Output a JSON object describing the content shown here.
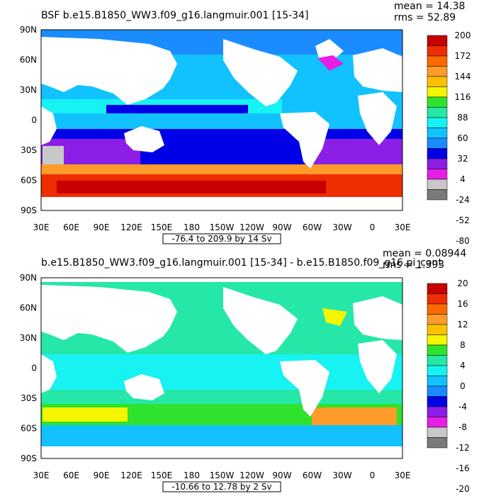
{
  "panels": [
    {
      "title": "BSF b.e15.B1850_WW3.f09_g16.langmuir.001 [15-34]",
      "stats": {
        "mean": "mean = 14.38",
        "rms": "rms = 52.89"
      },
      "range_label": "-76.4 to 209.9 by 14 Sv",
      "colorbar": {
        "labels": [
          "200",
          "172",
          "144",
          "116",
          "88",
          "60",
          "32",
          "4",
          "-24",
          "-52",
          "-80"
        ],
        "colors": [
          "#c80000",
          "#ee2d00",
          "#ff6a00",
          "#ff9b28",
          "#ffc000",
          "#f5f500",
          "#2ee22e",
          "#25e8a8",
          "#17f2f2",
          "#11c2ff",
          "#1a8cff",
          "#0000e6",
          "#8c1ee6",
          "#e61ee6",
          "#c8c8c8",
          "#7a7a7a"
        ]
      }
    },
    {
      "title": "b.e15.B1850_WW3.f09_g16.langmuir.001 [15-34] - b.e15.B1850.f09_g16.pi_cont",
      "stats": {
        "mean": "mean = 0.08944",
        "rms": "rms = 1.393"
      },
      "range_label": "-10.66 to 12.78 by 2 Sv",
      "colorbar": {
        "labels": [
          "20",
          "16",
          "12",
          "8",
          "4",
          "0",
          "-4",
          "-8",
          "-12",
          "-16",
          "-20"
        ],
        "colors": [
          "#c80000",
          "#ee2d00",
          "#ff6a00",
          "#ff9b28",
          "#ffc000",
          "#f5f500",
          "#2ee22e",
          "#25e8a8",
          "#17f2f2",
          "#11c2ff",
          "#1a8cff",
          "#0000e6",
          "#8c1ee6",
          "#e61ee6",
          "#c8c8c8",
          "#7a7a7a"
        ]
      }
    }
  ],
  "axes": {
    "lat_labels": [
      "90N",
      "60N",
      "30N",
      "0",
      "30S",
      "60S",
      "90S"
    ],
    "lon_labels": [
      "30E",
      "60E",
      "90E",
      "120E",
      "150E",
      "180",
      "150W",
      "120W",
      "90W",
      "60W",
      "30W",
      "0",
      "30E"
    ]
  }
}
